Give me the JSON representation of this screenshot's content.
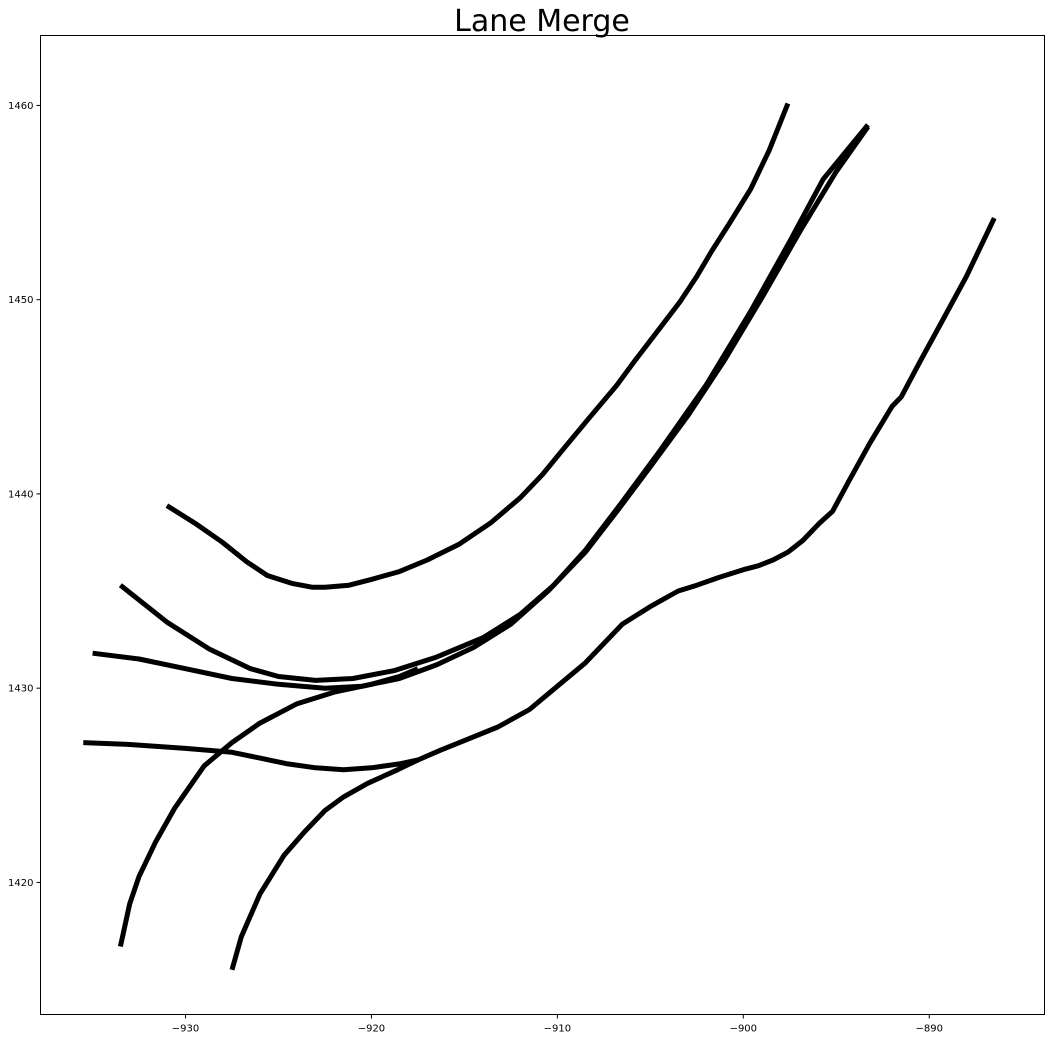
{
  "chart_data": {
    "type": "line",
    "title": "Lane Merge",
    "xlabel": "",
    "ylabel": "",
    "xlim": [
      -937.8,
      -883.8
    ],
    "ylim": [
      1413.2,
      1463.6
    ],
    "xticks": [
      -930,
      -920,
      -910,
      -900,
      -890
    ],
    "yticks": [
      1420,
      1430,
      1440,
      1450,
      1460
    ],
    "xtick_labels": [
      "−930",
      "−920",
      "−910",
      "−900",
      "−890"
    ],
    "ytick_labels": [
      "1420",
      "1430",
      "1440",
      "1450",
      "1460"
    ],
    "grid": false,
    "line_color": "#000000",
    "series": [
      {
        "x": [
          -931.0,
          -929.5,
          -928.0,
          -926.7,
          -925.6,
          -924.3,
          -923.2,
          -922.5,
          -921.2,
          -920.0,
          -918.5,
          -917.0,
          -915.3,
          -913.6,
          -912.0,
          -910.8,
          -909.6,
          -908.3,
          -906.8,
          -905.8,
          -904.6,
          -903.4,
          -902.5,
          -901.7,
          -900.7,
          -899.6,
          -898.6,
          -897.6
        ],
        "y": [
          1439.4,
          1438.5,
          1437.5,
          1436.5,
          1435.8,
          1435.4,
          1435.2,
          1435.2,
          1435.3,
          1435.6,
          1436.0,
          1436.6,
          1437.4,
          1438.5,
          1439.8,
          1441.0,
          1442.4,
          1443.9,
          1445.6,
          1446.9,
          1448.4,
          1449.9,
          1451.2,
          1452.5,
          1454.0,
          1455.7,
          1457.7,
          1460.1
        ]
      },
      {
        "x": [
          -933.5,
          -931.0,
          -928.7,
          -926.5,
          -925.0,
          -923.0,
          -921.0,
          -918.8,
          -916.5,
          -914.0,
          -912.0,
          -910.2,
          -908.5,
          -906.5,
          -904.5,
          -902.0,
          -899.6,
          -897.5,
          -895.7,
          -893.3
        ],
        "y": [
          1435.3,
          1433.4,
          1432.0,
          1431.0,
          1430.6,
          1430.4,
          1430.5,
          1430.9,
          1431.6,
          1432.6,
          1433.8,
          1435.3,
          1437.1,
          1439.6,
          1442.2,
          1445.6,
          1449.4,
          1453.0,
          1456.2,
          1459.0
        ]
      },
      {
        "x": [
          -935.0,
          -932.5,
          -930.0,
          -927.5,
          -925.0,
          -922.5,
          -920.5,
          -918.5,
          -916.5,
          -914.5,
          -912.5,
          -910.5,
          -908.5,
          -906.8,
          -905.0,
          -903.0,
          -901.0,
          -899.0,
          -896.9,
          -895.0,
          -893.3
        ],
        "y": [
          1431.8,
          1431.5,
          1431.0,
          1430.5,
          1430.2,
          1430.0,
          1430.1,
          1430.5,
          1431.2,
          1432.1,
          1433.3,
          1435.0,
          1437.0,
          1439.1,
          1441.4,
          1444.0,
          1446.9,
          1450.1,
          1453.6,
          1456.6,
          1458.9
        ]
      },
      {
        "x": [
          -935.5,
          -933.0,
          -930.0,
          -927.5,
          -926.0,
          -924.5,
          -923.0,
          -921.5,
          -920.0,
          -918.5,
          -917.5,
          -916.3,
          -915.0,
          -913.2,
          -911.5,
          -910.0,
          -908.5,
          -906.5,
          -905.0,
          -903.5,
          -902.5,
          -901.3,
          -900.0,
          -899.2,
          -898.4,
          -897.6,
          -896.8,
          -895.9,
          -895.2,
          -894.3,
          -893.2,
          -892.0,
          -891.5,
          -890.5,
          -889.3,
          -888.0,
          -886.5
        ],
        "y": [
          1427.2,
          1427.1,
          1426.9,
          1426.7,
          1426.4,
          1426.1,
          1425.9,
          1425.8,
          1425.9,
          1426.1,
          1426.3,
          1426.8,
          1427.3,
          1428.0,
          1428.9,
          1430.1,
          1431.3,
          1433.3,
          1434.2,
          1435.0,
          1435.3,
          1435.7,
          1436.1,
          1436.3,
          1436.6,
          1437.0,
          1437.6,
          1438.5,
          1439.1,
          1440.7,
          1442.6,
          1444.5,
          1445.0,
          1446.8,
          1448.9,
          1451.2,
          1454.2
        ]
      },
      {
        "x": [
          -933.5,
          -933.0,
          -932.5,
          -931.6,
          -930.6,
          -929.0,
          -927.5,
          -926.0,
          -924.0,
          -922.0,
          -920.0,
          -918.5,
          -917.5
        ],
        "y": [
          1416.7,
          1418.9,
          1420.3,
          1422.1,
          1423.8,
          1426.0,
          1427.2,
          1428.2,
          1429.2,
          1429.8,
          1430.2,
          1430.6,
          1431.0
        ]
      },
      {
        "x": [
          -927.5,
          -927.0,
          -926.0,
          -924.7,
          -923.6,
          -922.5,
          -921.5,
          -920.2,
          -918.6,
          -917.5
        ],
        "y": [
          1415.5,
          1417.2,
          1419.4,
          1421.4,
          1422.6,
          1423.7,
          1424.4,
          1425.1,
          1425.8,
          1426.3
        ]
      }
    ]
  }
}
